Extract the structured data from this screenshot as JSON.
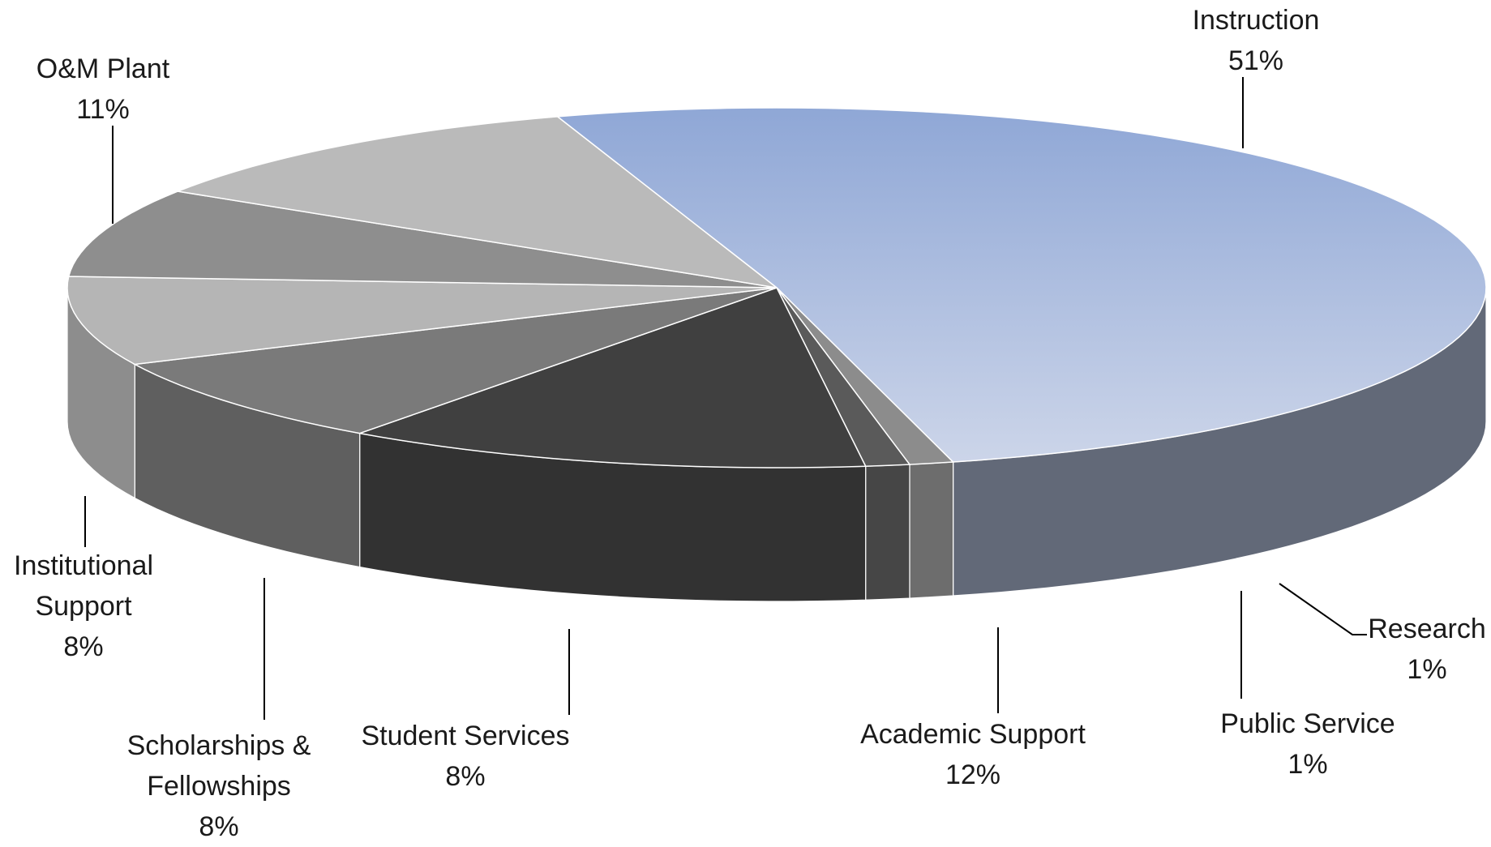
{
  "chart_data": {
    "type": "pie",
    "style": "3d",
    "title": "",
    "unit": "%",
    "slices": [
      {
        "name": "Instruction",
        "value": 51,
        "value_label": "51%",
        "color": "#a8b9dd",
        "label_lines": [
          "Instruction"
        ]
      },
      {
        "name": "Research",
        "value": 1,
        "value_label": "1%",
        "color": "#8c8c8c",
        "label_lines": [
          "Research"
        ]
      },
      {
        "name": "Public Service",
        "value": 1,
        "value_label": "1%",
        "color": "#5a5a5a",
        "label_lines": [
          "Public Service"
        ]
      },
      {
        "name": "Academic Support",
        "value": 12,
        "value_label": "12%",
        "color": "#404040",
        "label_lines": [
          "Academic Support"
        ]
      },
      {
        "name": "Student Services",
        "value": 8,
        "value_label": "8%",
        "color": "#7a7a7a",
        "label_lines": [
          "Student Services"
        ]
      },
      {
        "name": "Scholarships & Fellowships",
        "value": 8,
        "value_label": "8%",
        "color": "#b5b5b5",
        "label_lines": [
          "Scholarships &",
          "Fellowships"
        ]
      },
      {
        "name": "Institutional Support",
        "value": 8,
        "value_label": "8%",
        "color": "#8e8e8e",
        "label_lines": [
          "Institutional",
          "Support"
        ]
      },
      {
        "name": "O&M Plant",
        "value": 11,
        "value_label": "11%",
        "color": "#bababa",
        "label_lines": [
          "O&M Plant"
        ]
      }
    ],
    "legend": "none",
    "data_labels": "outside-with-leader-lines"
  }
}
